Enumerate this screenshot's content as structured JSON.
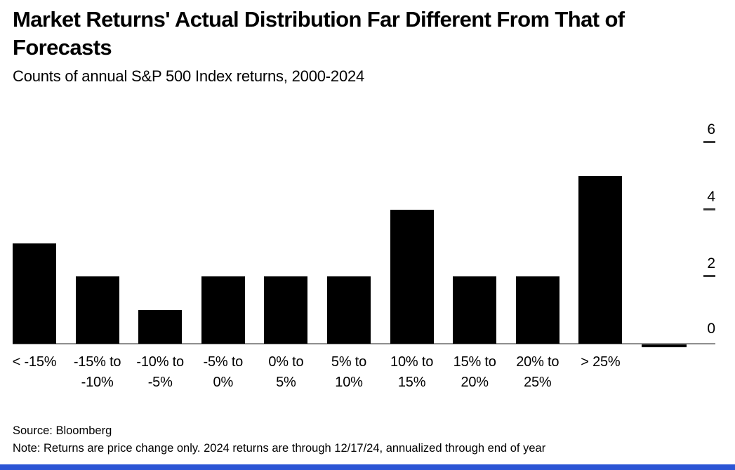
{
  "header": {
    "title_line1": "Market Returns' Actual Distribution Far Different From That of",
    "title_line2": "Forecasts",
    "subtitle": "Counts of annual S&P 500 Index returns, 2000-2024"
  },
  "chart_data": {
    "type": "bar",
    "title": "Market Returns' Actual Distribution Far Different From That of Forecasts",
    "subtitle": "Counts of annual S&P 500 Index returns, 2000-2024",
    "categories": [
      "< -15%",
      "-15% to -10%",
      "-10% to -5%",
      "-5% to 0%",
      "0% to 5%",
      "5% to 10%",
      "10% to 15%",
      "15% to 20%",
      "20% to 25%",
      "> 25%",
      ""
    ],
    "category_label_lines": [
      [
        "< -15%"
      ],
      [
        "-15% to",
        "-10%"
      ],
      [
        "-10% to",
        "-5%"
      ],
      [
        "-5% to",
        "0%"
      ],
      [
        "0% to",
        "5%"
      ],
      [
        "5% to",
        "10%"
      ],
      [
        "10% to",
        "15%"
      ],
      [
        "15% to",
        "20%"
      ],
      [
        "20% to",
        "25%"
      ],
      [
        "> 25%"
      ],
      []
    ],
    "values": [
      3,
      2,
      1,
      2,
      2,
      2,
      4,
      2,
      2,
      5,
      0
    ],
    "xlabel": "",
    "ylabel": "",
    "ylim": [
      0,
      6
    ],
    "yticks": [
      0,
      2,
      4,
      6
    ],
    "axis_side": "right",
    "grid": false,
    "legend": "none",
    "bar_color": "#000000"
  },
  "footer": {
    "source": "Source: Bloomberg",
    "note": "Note: Returns are price change only. 2024 returns are through 12/17/24, annualized through end of year"
  },
  "colors": {
    "bar": "#000000",
    "baseline": "#8f8f8f",
    "text": "#000000",
    "bottom_accent": "#2b55d5"
  }
}
